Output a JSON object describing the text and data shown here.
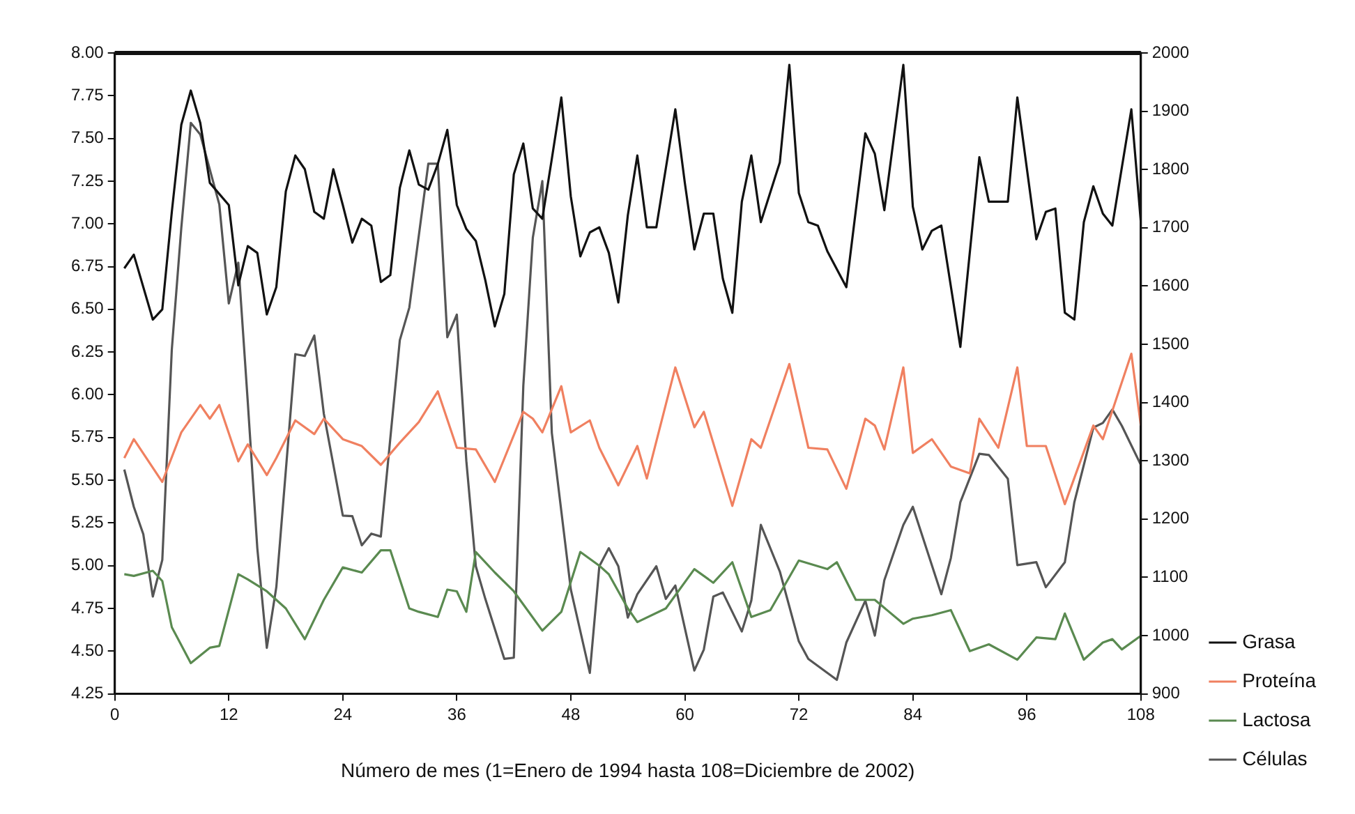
{
  "chart_data": {
    "type": "line",
    "xlabel": "Número de mes (1=Enero de 1994 hasta 108=Diciembre de 2002)",
    "xlim": [
      0,
      108
    ],
    "xticks": [
      0,
      12,
      24,
      36,
      48,
      60,
      72,
      84,
      96,
      108
    ],
    "ylim": [
      4.25,
      8
    ],
    "yticks": [
      {
        "value": 4.25,
        "label": "4.25"
      },
      {
        "value": 4.5,
        "label": "4.50"
      },
      {
        "value": 4.75,
        "label": "4.75"
      },
      {
        "value": 5,
        "label": "5.00"
      },
      {
        "value": 5.25,
        "label": "5.25"
      },
      {
        "value": 5.5,
        "label": "5.50"
      },
      {
        "value": 5.75,
        "label": "5.75"
      },
      {
        "value": 6,
        "label": "6.00"
      },
      {
        "value": 6.25,
        "label": "6.25"
      },
      {
        "value": 6.5,
        "label": "6.50"
      },
      {
        "value": 6.75,
        "label": "6.75"
      },
      {
        "value": 7,
        "label": "7.00"
      },
      {
        "value": 7.25,
        "label": "7.25"
      },
      {
        "value": 7.5,
        "label": "7.50"
      },
      {
        "value": 7.75,
        "label": "7.75"
      },
      {
        "value": 8,
        "label": "8.00"
      }
    ],
    "y2lim": [
      900,
      2000
    ],
    "y2ticks": [
      900,
      1000,
      1100,
      1200,
      1300,
      1400,
      1500,
      1600,
      1700,
      1800,
      1900,
      2000
    ],
    "legend": "bottom right",
    "grid": false,
    "series": [
      {
        "name": "Grasa",
        "color": "#111111",
        "x": [
          1,
          2,
          4,
          5,
          6,
          7,
          8,
          9,
          10,
          12,
          13,
          14,
          15,
          16,
          17,
          18,
          19,
          20,
          21,
          22,
          23,
          24,
          25,
          26,
          27,
          28,
          29,
          30,
          31,
          32,
          33,
          34,
          35,
          36,
          37,
          38,
          39,
          40,
          41,
          42,
          43,
          44,
          45,
          46,
          47,
          48,
          49,
          50,
          51,
          52,
          53,
          54,
          55,
          56,
          57,
          59,
          60,
          61,
          62,
          63,
          64,
          65,
          66,
          67,
          68,
          70,
          71,
          72,
          73,
          74,
          75,
          77,
          79,
          80,
          81,
          83,
          84,
          85,
          86,
          87,
          89,
          91,
          92,
          94,
          95,
          97,
          98,
          99,
          100,
          101,
          102,
          103,
          104,
          105,
          107,
          108
        ],
        "values": [
          6.74,
          6.82,
          6.44,
          6.5,
          7.07,
          7.58,
          7.78,
          7.59,
          7.24,
          7.11,
          6.64,
          6.87,
          6.83,
          6.47,
          6.63,
          7.19,
          7.4,
          7.32,
          7.07,
          7.03,
          7.32,
          7.11,
          6.89,
          7.03,
          6.99,
          6.66,
          6.7,
          7.21,
          7.43,
          7.23,
          7.2,
          7.35,
          7.55,
          7.11,
          6.97,
          6.9,
          6.67,
          6.4,
          6.59,
          7.29,
          7.47,
          7.09,
          7.03,
          7.38,
          7.74,
          7.16,
          6.81,
          6.95,
          6.98,
          6.83,
          6.54,
          7.05,
          7.4,
          6.98,
          6.98,
          7.67,
          7.24,
          6.85,
          7.06,
          7.06,
          6.68,
          6.48,
          7.13,
          7.4,
          7.01,
          7.36,
          7.93,
          7.18,
          7.01,
          6.99,
          6.84,
          6.63,
          7.53,
          7.41,
          7.08,
          7.93,
          7.1,
          6.85,
          6.96,
          6.99,
          6.28,
          7.39,
          7.13,
          7.13,
          7.74,
          6.91,
          7.07,
          7.09,
          6.48,
          6.44,
          7.01,
          7.22,
          7.06,
          6.99,
          7.67,
          7.01
        ]
      },
      {
        "name": "Proteína",
        "color": "#f08060",
        "x": [
          1,
          2,
          5,
          7,
          9,
          10,
          11,
          13,
          14,
          16,
          17,
          19,
          21,
          22,
          24,
          26,
          28,
          30,
          32,
          34,
          36,
          38,
          40,
          43,
          44,
          45,
          47,
          48,
          50,
          51,
          53,
          55,
          56,
          59,
          61,
          62,
          65,
          67,
          68,
          71,
          73,
          75,
          77,
          79,
          80,
          81,
          83,
          84,
          86,
          88,
          90,
          91,
          93,
          95,
          96,
          98,
          100,
          103,
          104,
          107,
          108
        ],
        "values": [
          5.63,
          5.74,
          5.49,
          5.78,
          5.94,
          5.86,
          5.94,
          5.61,
          5.71,
          5.53,
          5.63,
          5.85,
          5.77,
          5.86,
          5.74,
          5.7,
          5.59,
          5.72,
          5.84,
          6.02,
          5.69,
          5.68,
          5.49,
          5.9,
          5.86,
          5.78,
          6.05,
          5.78,
          5.85,
          5.69,
          5.47,
          5.7,
          5.51,
          6.16,
          5.81,
          5.9,
          5.35,
          5.74,
          5.69,
          6.18,
          5.69,
          5.68,
          5.45,
          5.86,
          5.82,
          5.68,
          6.16,
          5.66,
          5.74,
          5.58,
          5.54,
          5.86,
          5.69,
          6.16,
          5.7,
          5.7,
          5.36,
          5.82,
          5.74,
          6.24,
          5.82
        ]
      },
      {
        "name": "Lactosa",
        "color": "#5a8a50",
        "x": [
          1,
          2,
          4,
          5,
          6,
          8,
          10,
          11,
          13,
          14,
          16,
          18,
          20,
          22,
          24,
          26,
          28,
          29,
          31,
          32,
          34,
          35,
          36,
          37,
          38,
          40,
          42,
          45,
          47,
          49,
          51,
          52,
          53,
          54,
          55,
          58,
          61,
          63,
          65,
          67,
          69,
          72,
          75,
          76,
          78,
          80,
          83,
          84,
          86,
          88,
          90,
          92,
          95,
          97,
          99,
          100,
          102,
          104,
          105,
          106,
          108
        ],
        "values": [
          4.95,
          4.94,
          4.97,
          4.91,
          4.64,
          4.43,
          4.52,
          4.53,
          4.95,
          4.92,
          4.85,
          4.75,
          4.57,
          4.8,
          4.99,
          4.96,
          5.09,
          5.09,
          4.75,
          4.73,
          4.7,
          4.86,
          4.85,
          4.73,
          5.08,
          4.96,
          4.85,
          4.62,
          4.73,
          5.08,
          5,
          4.95,
          4.85,
          4.75,
          4.67,
          4.75,
          4.98,
          4.9,
          5.02,
          4.7,
          4.74,
          5.03,
          4.98,
          5.02,
          4.8,
          4.8,
          4.66,
          4.69,
          4.71,
          4.74,
          4.5,
          4.54,
          4.45,
          4.58,
          4.57,
          4.72,
          4.45,
          4.55,
          4.57,
          4.51,
          4.59
        ]
      },
      {
        "name": "Células",
        "color": "#555555",
        "axis": "y2",
        "x": [
          1,
          2,
          3,
          4,
          5,
          6,
          7,
          8,
          9,
          10,
          11,
          12,
          13,
          14,
          15,
          16,
          17,
          19,
          20,
          21,
          22,
          24,
          25,
          26,
          27,
          28,
          30,
          31,
          33,
          34,
          35,
          36,
          37,
          38,
          39,
          41,
          42,
          43,
          44,
          45,
          46,
          48,
          50,
          51,
          52,
          53,
          54,
          55,
          57,
          58,
          59,
          61,
          62,
          63,
          64,
          66,
          67,
          68,
          70,
          72,
          73,
          76,
          77,
          79,
          80,
          81,
          83,
          84,
          87,
          88,
          89,
          91,
          92,
          94,
          95,
          97,
          98,
          100,
          101,
          103,
          104,
          105,
          106,
          108
        ],
        "values": [
          1285,
          1221,
          1174,
          1067,
          1130,
          1491,
          1700,
          1880,
          1860,
          1800,
          1740,
          1570,
          1640,
          1400,
          1150,
          979,
          1083,
          1483,
          1480,
          1515,
          1381,
          1206,
          1205,
          1155,
          1175,
          1170,
          1507,
          1563,
          1810,
          1810,
          1512,
          1551,
          1300,
          1119,
          1063,
          960,
          962,
          1429,
          1683,
          1780,
          1348,
          1079,
          936,
          1119,
          1150,
          1119,
          1031,
          1071,
          1119,
          1063,
          1086,
          940,
          976,
          1067,
          1074,
          1007,
          1060,
          1190,
          1110,
          990,
          960,
          924,
          988,
          1060,
          1000,
          1095,
          1190,
          1221,
          1071,
          1133,
          1229,
          1312,
          1310,
          1269,
          1121,
          1126,
          1083,
          1126,
          1229,
          1357,
          1365,
          1388,
          1360,
          1293
        ]
      }
    ]
  }
}
